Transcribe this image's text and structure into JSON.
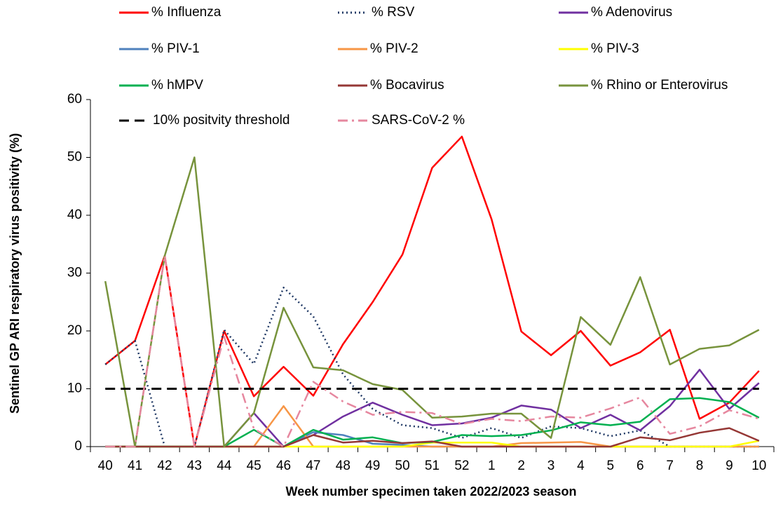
{
  "chart_data": {
    "type": "line",
    "x_label": "Week number specimen taken 2022/2023 season",
    "y_label": "Sentinel GP ARI respiratory virus positivity (%)",
    "categories": [
      "40",
      "41",
      "42",
      "43",
      "44",
      "45",
      "46",
      "47",
      "48",
      "49",
      "50",
      "51",
      "52",
      "1",
      "2",
      "3",
      "4",
      "5",
      "6",
      "7",
      "8",
      "9",
      "10"
    ],
    "ylim": [
      0,
      60
    ],
    "yticks": [
      0,
      10,
      20,
      30,
      40,
      50,
      60
    ],
    "series": [
      {
        "name": "% Influenza",
        "color": "#ff0000",
        "style": "solid",
        "values": [
          14.2,
          18.3,
          33,
          0,
          20,
          8.7,
          13.8,
          8.8,
          17.7,
          25,
          33.2,
          48.2,
          53.6,
          39.3,
          19.9,
          15.8,
          20,
          14,
          16.3,
          20.2,
          4.8,
          7.6,
          13.1
        ]
      },
      {
        "name": "% RSV",
        "color": "#1f3864",
        "style": "dotted",
        "values": [
          14.2,
          18.3,
          0,
          0,
          20.2,
          14.3,
          27.5,
          22.5,
          12.5,
          6.5,
          3.7,
          3.2,
          1.5,
          3.2,
          1.5,
          3.5,
          3.2,
          1.8,
          2.8,
          0,
          0,
          0,
          0
        ]
      },
      {
        "name": "% Adenovirus",
        "color": "#7030a0",
        "style": "solid",
        "values": [
          0,
          0,
          0,
          0,
          0,
          5.8,
          0,
          2,
          5.2,
          7.6,
          5.5,
          3.7,
          4,
          5,
          7.1,
          6.4,
          3.2,
          5.5,
          2.8,
          7,
          13.3,
          6.5,
          11
        ]
      },
      {
        "name": "% PIV-1",
        "color": "#4f81bd",
        "style": "solid",
        "values": [
          0,
          0,
          0,
          0,
          0,
          0,
          0,
          2.5,
          2,
          0.5,
          0.3,
          0,
          0,
          0,
          0,
          0,
          0,
          0,
          0,
          0,
          0,
          0,
          0
        ]
      },
      {
        "name": "% PIV-2",
        "color": "#f79646",
        "style": "solid",
        "values": [
          0,
          0,
          0,
          0,
          0,
          0,
          7,
          0,
          0,
          0,
          0,
          0,
          0,
          0,
          0.6,
          0.7,
          0.8,
          0,
          0,
          0,
          0,
          0,
          0
        ]
      },
      {
        "name": "% PIV-3",
        "color": "#ffff00",
        "style": "solid",
        "values": [
          0,
          0,
          0,
          0,
          0,
          0,
          0,
          0,
          0,
          0,
          0,
          0.7,
          0.7,
          0.7,
          0,
          0,
          0,
          0,
          0,
          0,
          0,
          0,
          1
        ]
      },
      {
        "name": "% hMPV",
        "color": "#00b050",
        "style": "solid",
        "values": [
          0,
          0,
          0,
          0,
          0,
          2.9,
          0,
          2.9,
          1.2,
          1.6,
          0.6,
          0.8,
          2,
          1.8,
          2,
          2.8,
          4.2,
          3.7,
          4.3,
          8.2,
          8.4,
          7.7,
          5
        ]
      },
      {
        "name": "% Bocavirus",
        "color": "#953735",
        "style": "solid",
        "values": [
          0,
          0,
          0,
          0,
          0,
          0,
          0,
          2,
          0.7,
          1,
          0.6,
          0.9,
          0,
          0,
          0,
          0,
          0,
          0,
          1.6,
          1.1,
          2.4,
          3.2,
          1
        ]
      },
      {
        "name": "% Rhino or Enterovirus",
        "color": "#77933c",
        "style": "solid",
        "values": [
          28.6,
          0,
          33,
          50,
          0,
          5.8,
          24,
          13.7,
          13.2,
          10.8,
          9.8,
          5,
          5.2,
          5.7,
          5.7,
          1.5,
          22.4,
          17.6,
          29.3,
          14.2,
          16.9,
          17.5,
          20.2
        ]
      },
      {
        "name": "10% positvity threshold",
        "color": "#000000",
        "style": "dashed",
        "values": [
          10,
          10,
          10,
          10,
          10,
          10,
          10,
          10,
          10,
          10,
          10,
          10,
          10,
          10,
          10,
          10,
          10,
          10,
          10,
          10,
          10,
          10,
          10
        ]
      },
      {
        "name": "SARS-CoV-2 %",
        "color": "#e6879f",
        "style": "dashdot",
        "values": [
          0,
          0,
          33,
          0,
          19,
          3.1,
          0,
          11.2,
          7.8,
          5.5,
          6,
          5.8,
          3.9,
          4.8,
          4.4,
          5.2,
          5,
          6.6,
          8.5,
          2.2,
          3.5,
          6.3,
          4.8
        ]
      }
    ]
  }
}
